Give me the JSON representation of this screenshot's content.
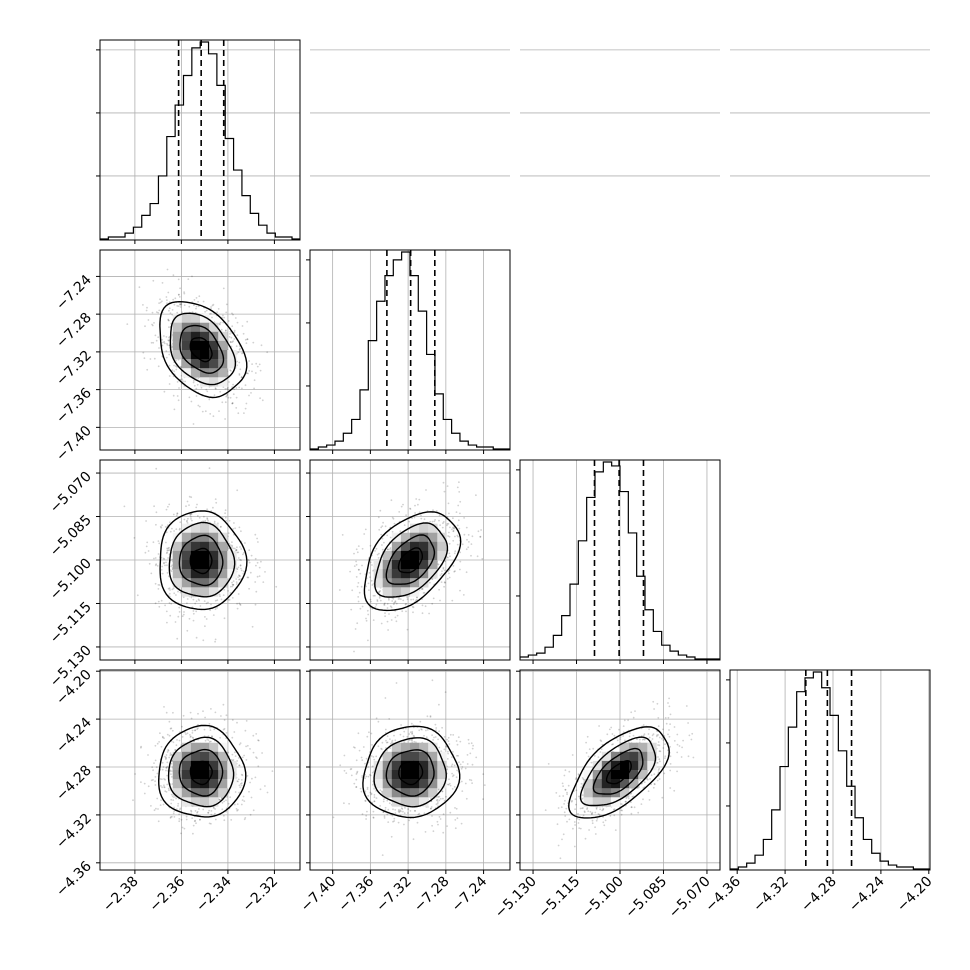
{
  "chart_data": {
    "type": "corner",
    "n_params": 4,
    "grid": true,
    "param_ranges": [
      [
        -2.395,
        -2.309
      ],
      [
        -7.424,
        -7.212
      ],
      [
        -5.1345,
        -5.0655
      ],
      [
        -4.366,
        -4.199
      ]
    ],
    "tick_labels": [
      [
        "−2.38",
        "−2.36",
        "−2.34",
        "−2.32"
      ],
      [
        "−7.40",
        "−7.36",
        "−7.32",
        "−7.28",
        "−7.24"
      ],
      [
        "−5.130",
        "−5.115",
        "−5.100",
        "−5.085",
        "−5.070"
      ],
      [
        "−4.36",
        "−4.32",
        "−4.28",
        "−4.24",
        "−4.20"
      ]
    ],
    "tick_values": [
      [
        -2.38,
        -2.36,
        -2.34,
        -2.32
      ],
      [
        -7.4,
        -7.36,
        -7.32,
        -7.28,
        -7.24
      ],
      [
        -5.13,
        -5.115,
        -5.1,
        -5.085,
        -5.07
      ],
      [
        -4.36,
        -4.32,
        -4.28,
        -4.24,
        -4.2
      ]
    ],
    "marginals": [
      {
        "param": 0,
        "quantiles": [
          -2.3612,
          -2.3515,
          -2.3418
        ],
        "bin_start": -2.395,
        "bin_width": 0.00359,
        "counts": [
          0,
          1,
          1,
          3,
          6,
          12,
          18,
          32,
          52,
          68,
          83,
          97,
          100,
          94,
          78,
          51,
          35,
          22,
          13,
          7,
          3,
          1,
          1,
          0
        ]
      },
      {
        "param": 1,
        "quantiles": [
          -7.3425,
          -7.3173,
          -7.2917
        ],
        "bin_start": -7.424,
        "bin_width": 0.00883,
        "counts": [
          0,
          1,
          2,
          4,
          8,
          15,
          30,
          55,
          75,
          88,
          96,
          100,
          88,
          70,
          48,
          28,
          15,
          8,
          4,
          2,
          1,
          1,
          0,
          0
        ]
      },
      {
        "param": 2,
        "quantiles": [
          -5.1088,
          -5.1003,
          -5.0919
        ],
        "bin_start": -5.1345,
        "bin_width": 0.002875,
        "counts": [
          1,
          2,
          3,
          6,
          12,
          22,
          38,
          60,
          82,
          95,
          100,
          98,
          85,
          64,
          42,
          25,
          14,
          7,
          4,
          2,
          1,
          0,
          0,
          0
        ]
      },
      {
        "param": 3,
        "quantiles": [
          -4.3027,
          -4.2847,
          -4.2645
        ],
        "bin_start": -4.366,
        "bin_width": 0.00696,
        "counts": [
          0,
          1,
          3,
          7,
          15,
          30,
          52,
          72,
          90,
          97,
          100,
          92,
          78,
          60,
          42,
          26,
          15,
          8,
          4,
          2,
          1,
          1,
          0,
          0
        ]
      }
    ],
    "joints": [
      {
        "row": 1,
        "col": 0,
        "mean": [
          -2.3515,
          -7.3173
        ],
        "sd": [
          0.0093,
          0.0252
        ],
        "rho": -0.35
      },
      {
        "row": 2,
        "col": 0,
        "mean": [
          -2.3515,
          -5.1003
        ],
        "sd": [
          0.0093,
          0.0085
        ],
        "rho": 0.0
      },
      {
        "row": 2,
        "col": 1,
        "mean": [
          -7.3173,
          -5.1003
        ],
        "sd": [
          0.0252,
          0.0085
        ],
        "rho": 0.45
      },
      {
        "row": 3,
        "col": 0,
        "mean": [
          -2.3515,
          -4.2847
        ],
        "sd": [
          0.0093,
          0.019
        ],
        "rho": 0.0
      },
      {
        "row": 3,
        "col": 1,
        "mean": [
          -7.3173,
          -4.2847
        ],
        "sd": [
          0.0252,
          0.019
        ],
        "rho": 0.05
      },
      {
        "row": 3,
        "col": 2,
        "mean": [
          -5.1003,
          -4.2847
        ],
        "sd": [
          0.0085,
          0.019
        ],
        "rho": 0.6
      }
    ],
    "contour_levels_sigma": [
      0.5,
      1.0,
      1.5,
      2.0
    ],
    "colors": {
      "line": "#000000",
      "grid": "#b0b0b0",
      "points": "#000000",
      "density_dark": "#000000",
      "background": "#ffffff"
    }
  }
}
